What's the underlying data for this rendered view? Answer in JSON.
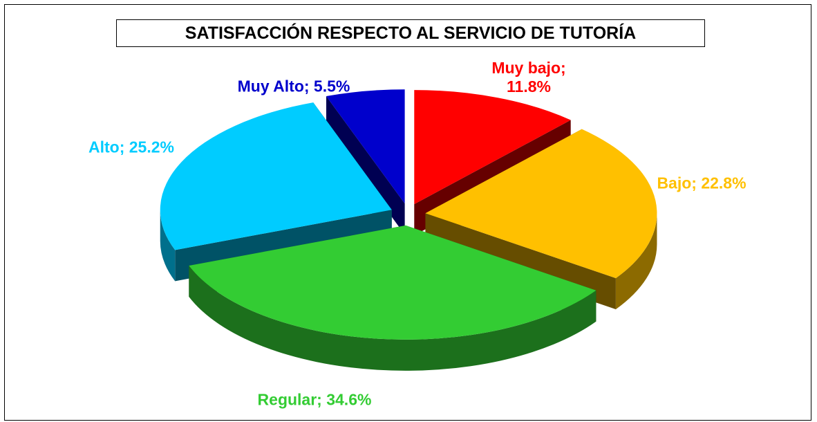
{
  "chart_data": {
    "type": "pie",
    "title": "SATISFACCIÓN RESPECTO AL SERVICIO DE TUTORÍA",
    "categories": [
      "Muy bajo",
      "Bajo",
      "Regular",
      "Alto",
      "Muy Alto"
    ],
    "values": [
      11.8,
      22.8,
      34.6,
      25.2,
      5.5
    ],
    "value_labels": [
      "Muy bajo; 11.8%",
      "Bajo; 22.8%",
      "Regular; 34.6%",
      "Alto; 25.2%",
      "Muy Alto; 5.5%"
    ],
    "colors": [
      "#ff0000",
      "#ffc000",
      "#33cc33",
      "#00ccff",
      "#0000cc"
    ]
  }
}
